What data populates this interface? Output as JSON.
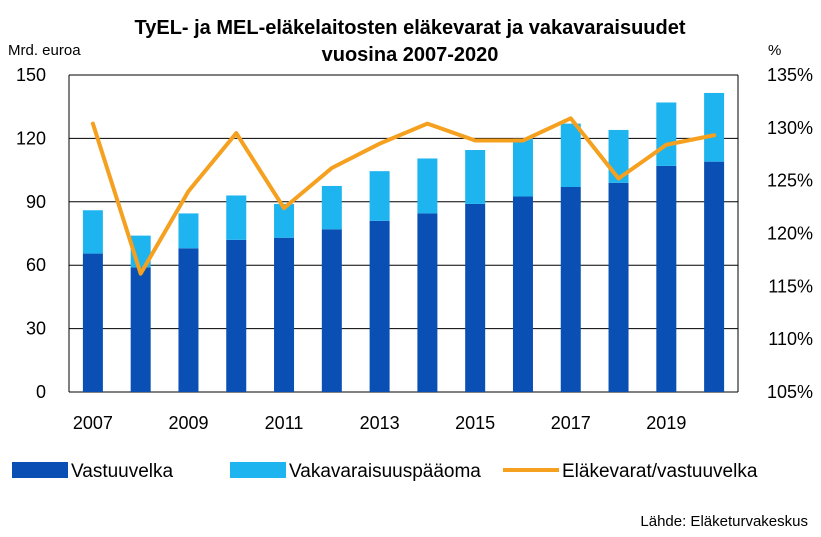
{
  "chart_data": {
    "type": "bar",
    "title_line1": "TyEL- ja MEL-eläkelaitosten eläkevarat ja vakavaraisuudet",
    "title_line2": "vuosina 2007-2020",
    "left_axis_label": "Mrd. euroa",
    "right_axis_label": "%",
    "categories": [
      "2007",
      "2008",
      "2009",
      "2010",
      "2011",
      "2012",
      "2013",
      "2014",
      "2015",
      "2016",
      "2017",
      "2018",
      "2019",
      "2020"
    ],
    "x_tick_labels": [
      "2007",
      "2009",
      "2011",
      "2013",
      "2015",
      "2017",
      "2019"
    ],
    "left_ylim": [
      0,
      150
    ],
    "left_ticks": [
      "0",
      "30",
      "60",
      "90",
      "120",
      "150"
    ],
    "right_ylim": [
      105,
      135
    ],
    "right_ticks": [
      "105%",
      "110%",
      "115%",
      "120%",
      "125%",
      "130%",
      "135%"
    ],
    "grid": true,
    "series": [
      {
        "name": "Vastuuvelka",
        "kind": "stacked-bar",
        "color": "#0a4fb4",
        "values": [
          65.5,
          59,
          68,
          72,
          73,
          77,
          81,
          84.5,
          89,
          92.5,
          97,
          99,
          107,
          109
        ]
      },
      {
        "name": "Vakavaraisuuspääoma",
        "kind": "stacked-bar",
        "color": "#1eb4f0",
        "values": [
          20.5,
          15,
          16.5,
          21,
          16,
          20.5,
          23.5,
          26,
          25.5,
          27.5,
          30,
          25,
          30,
          32.5
        ]
      },
      {
        "name": "Eläkevarat/vastuuvelka",
        "kind": "line",
        "axis": "right",
        "color": "#f5a01e",
        "values": [
          130.4,
          116.2,
          124.0,
          129.5,
          122.4,
          126.2,
          128.5,
          130.4,
          128.8,
          128.8,
          130.9,
          125.2,
          128.4,
          129.3
        ]
      }
    ],
    "legend_position": "bottom",
    "source": "Lähde: Eläketurvakeskus"
  }
}
